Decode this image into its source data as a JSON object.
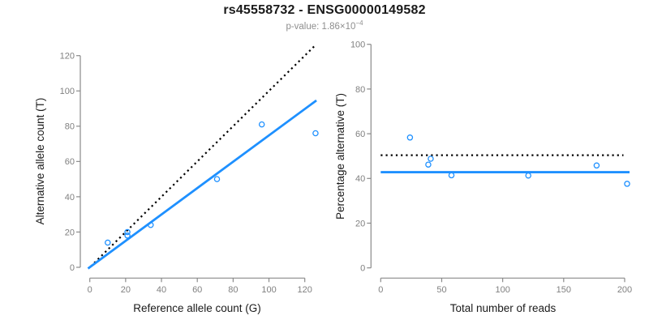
{
  "title": "rs45558732 - ENSG00000149582",
  "subtitle": {
    "text": "p-value: 1.86×10",
    "exponent": "−4"
  },
  "colors": {
    "accent_blue": "#1E90FF",
    "line_black": "#000000",
    "axis_gray": "#8a8a8a",
    "tick_label_gray": "#808080",
    "label_black": "#1a1a1a",
    "subtitle_gray": "#8e8e8e",
    "background": "#ffffff"
  },
  "chart_data": [
    {
      "type": "scatter",
      "name": "allele-counts-plot",
      "xlabel": "Reference allele count (G)",
      "ylabel": "Alternative allele count (T)",
      "xticks": [
        0,
        20,
        40,
        60,
        80,
        100,
        120
      ],
      "yticks": [
        0,
        20,
        40,
        60,
        80,
        100,
        120
      ],
      "xlim": [
        0,
        126
      ],
      "ylim": [
        0,
        126
      ],
      "points": [
        [
          10,
          14
        ],
        [
          21,
          20
        ],
        [
          21,
          18
        ],
        [
          34,
          24
        ],
        [
          71,
          50
        ],
        [
          96,
          81
        ],
        [
          126,
          76
        ]
      ],
      "lines": [
        {
          "name": "identity-line",
          "style": "dotted",
          "color": "#000000",
          "width": 2.2,
          "x1": 0.5,
          "y1": 0.5,
          "x2": 126,
          "y2": 126
        },
        {
          "name": "fit-line",
          "style": "solid",
          "color": "#1E90FF",
          "width": 2.8,
          "x1": -1,
          "y1": -0.7,
          "x2": 126.5,
          "y2": 94.6
        }
      ]
    },
    {
      "type": "scatter",
      "name": "percentage-alternative-plot",
      "xlabel": "Total number of reads",
      "ylabel": "Percentage alternative (T)",
      "xticks": [
        0,
        50,
        100,
        150,
        200
      ],
      "yticks": [
        0,
        20,
        40,
        60,
        80,
        100
      ],
      "xlim": [
        0,
        204
      ],
      "ylim": [
        0,
        100
      ],
      "points": [
        [
          24,
          58.3
        ],
        [
          41,
          48.8
        ],
        [
          39,
          46.2
        ],
        [
          58,
          41.4
        ],
        [
          121,
          41.3
        ],
        [
          177,
          45.8
        ],
        [
          202,
          37.6
        ]
      ],
      "lines": [
        {
          "name": "expected-50pct-line",
          "style": "dotted",
          "color": "#000000",
          "width": 2.2,
          "x1": 0,
          "y1": 50.4,
          "x2": 199,
          "y2": 50.4
        },
        {
          "name": "mean-percentage-line",
          "style": "solid",
          "color": "#1E90FF",
          "width": 2.8,
          "x1": 0,
          "y1": 42.8,
          "x2": 204,
          "y2": 42.8
        }
      ]
    }
  ]
}
